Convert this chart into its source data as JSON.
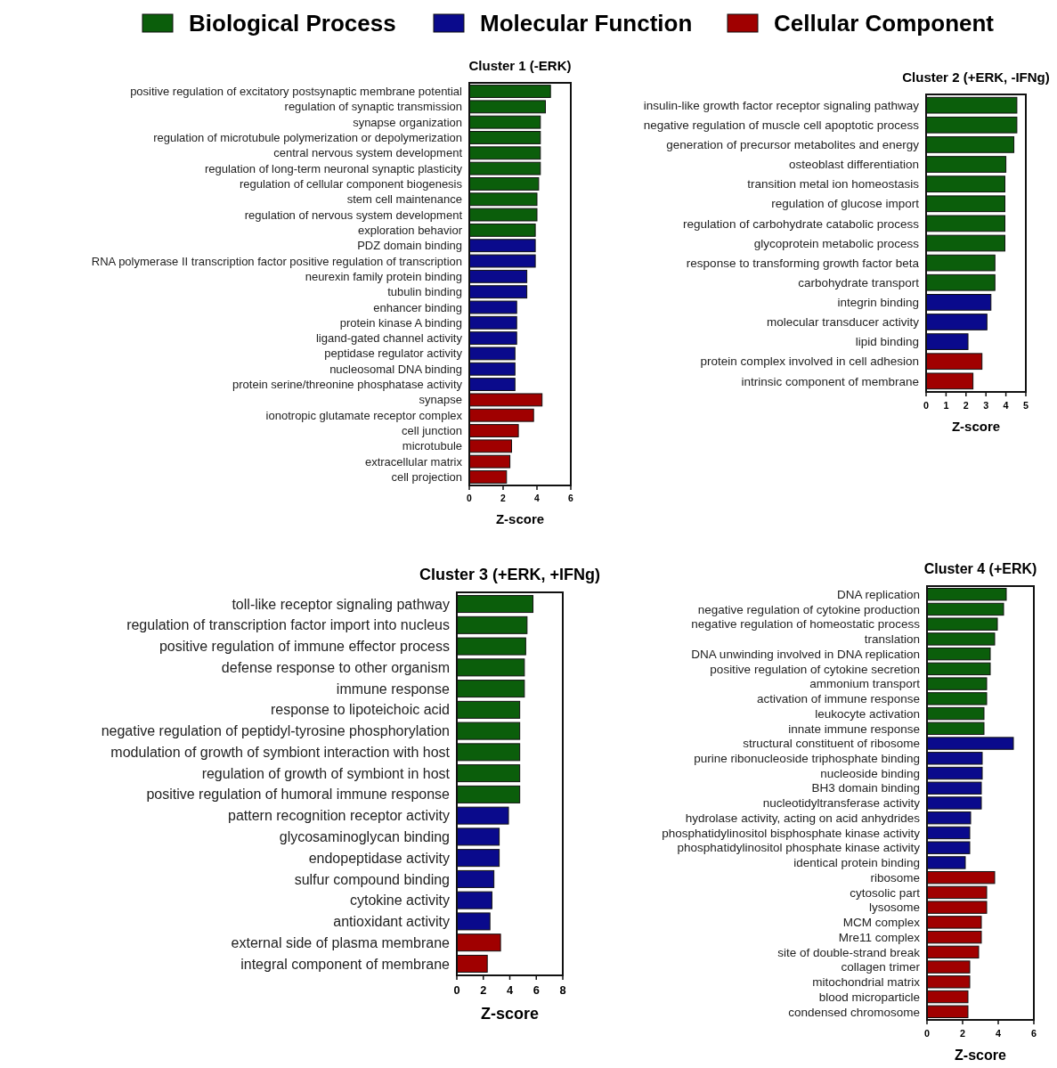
{
  "chart_data": [
    {
      "type": "bar",
      "orientation": "horizontal",
      "title": "Cluster 1 (-ERK)",
      "xlabel": "Z-score",
      "legend": "top",
      "categories": [
        "positive regulation of excitatory postsynaptic membrane potential",
        "regulation of synaptic transmission",
        "synapse organization",
        "regulation of microtubule polymerization or depolymerization",
        "central nervous system development",
        "regulation of long-term neuronal synaptic plasticity",
        "regulation of cellular component biogenesis",
        "stem cell maintenance",
        "regulation of nervous system development",
        "exploration behavior",
        "PDZ domain binding",
        "RNA polymerase II transcription factor positive regulation of transcription",
        "neurexin family protein binding",
        "tubulin binding",
        "enhancer binding",
        "protein kinase A binding",
        "ligand-gated channel activity",
        "peptidase regulator activity",
        "nucleosomal DNA binding",
        "protein serine/threonine phosphatase activity",
        "synapse",
        "ionotropic glutamate receptor complex",
        "cell junction",
        "microtubule",
        "extracellular matrix",
        "cell projection"
      ],
      "series": [
        {
          "name": "Biological Process",
          "color": "#0b5e0b",
          "values": [
            4.8,
            4.5,
            4.2,
            4.2,
            4.2,
            4.2,
            4.1,
            4.0,
            4.0,
            3.9,
            null,
            null,
            null,
            null,
            null,
            null,
            null,
            null,
            null,
            null,
            null,
            null,
            null,
            null,
            null,
            null
          ]
        },
        {
          "name": "Molecular Function",
          "color": "#0a0a8c",
          "values": [
            null,
            null,
            null,
            null,
            null,
            null,
            null,
            null,
            null,
            null,
            3.9,
            3.9,
            3.4,
            3.4,
            2.8,
            2.8,
            2.8,
            2.7,
            2.7,
            2.7,
            null,
            null,
            null,
            null,
            null,
            null
          ]
        },
        {
          "name": "Cellular Component",
          "color": "#a00000",
          "values": [
            null,
            null,
            null,
            null,
            null,
            null,
            null,
            null,
            null,
            null,
            null,
            null,
            null,
            null,
            null,
            null,
            null,
            null,
            null,
            null,
            4.3,
            3.8,
            2.9,
            2.5,
            2.4,
            2.2
          ]
        }
      ],
      "xlim": [
        0,
        6
      ],
      "xticks": [
        0,
        2,
        4,
        6
      ]
    },
    {
      "type": "bar",
      "orientation": "horizontal",
      "title": "Cluster 2 (+ERK, -IFNg)",
      "xlabel": "Z-score",
      "categories": [
        "insulin-like growth factor receptor signaling pathway",
        "negative regulation of muscle cell apoptotic process",
        "generation of precursor metabolites and energy",
        "osteoblast differentiation",
        "transition metal ion homeostasis",
        "regulation of glucose import",
        "regulation of carbohydrate catabolic process",
        "glycoprotein metabolic process",
        "response to transforming growth factor beta",
        "carbohydrate transport",
        "integrin binding",
        "molecular transducer activity",
        "lipid binding",
        "protein complex involved in cell adhesion",
        "intrinsic component of membrane"
      ],
      "series": [
        {
          "color": "#0b5e0b",
          "values": [
            4.55,
            4.55,
            4.4,
            4.0,
            3.95,
            3.95,
            3.95,
            3.95,
            3.45,
            3.45,
            null,
            null,
            null,
            null,
            null
          ]
        },
        {
          "color": "#0a0a8c",
          "values": [
            null,
            null,
            null,
            null,
            null,
            null,
            null,
            null,
            null,
            null,
            3.25,
            3.05,
            2.1,
            null,
            null
          ]
        },
        {
          "color": "#a00000",
          "values": [
            null,
            null,
            null,
            null,
            null,
            null,
            null,
            null,
            null,
            null,
            null,
            null,
            null,
            2.8,
            2.35
          ]
        }
      ],
      "xlim": [
        0,
        5
      ],
      "xticks": [
        0,
        1,
        2,
        3,
        4,
        5
      ]
    },
    {
      "type": "bar",
      "orientation": "horizontal",
      "title": "Cluster 3 (+ERK, +IFNg)",
      "xlabel": "Z-score",
      "categories": [
        "toll-like receptor signaling pathway",
        "regulation of transcription factor import into nucleus",
        "positive regulation of immune effector process",
        "defense response to other organism",
        "immune response",
        "response to lipoteichoic acid",
        "negative regulation of peptidyl-tyrosine phosphorylation",
        "modulation of growth of symbiont interaction with host",
        "regulation of growth of symbiont in host",
        "positive regulation of humoral immune response",
        "pattern recognition receptor activity",
        "glycosaminoglycan binding",
        "endopeptidase activity",
        "sulfur compound binding",
        "cytokine activity",
        "antioxidant activity",
        "external side of plasma membrane",
        "integral component of membrane"
      ],
      "series": [
        {
          "color": "#0b5e0b",
          "values": [
            5.75,
            5.3,
            5.2,
            5.1,
            5.1,
            4.75,
            4.75,
            4.75,
            4.75,
            4.75,
            null,
            null,
            null,
            null,
            null,
            null,
            null,
            null
          ]
        },
        {
          "color": "#0a0a8c",
          "values": [
            null,
            null,
            null,
            null,
            null,
            null,
            null,
            null,
            null,
            null,
            3.9,
            3.2,
            3.2,
            2.8,
            2.65,
            2.5,
            null,
            null
          ]
        },
        {
          "color": "#a00000",
          "values": [
            null,
            null,
            null,
            null,
            null,
            null,
            null,
            null,
            null,
            null,
            null,
            null,
            null,
            null,
            null,
            null,
            3.3,
            2.3
          ]
        }
      ],
      "xlim": [
        0,
        8
      ],
      "xticks": [
        0,
        2,
        4,
        6,
        8
      ]
    },
    {
      "type": "bar",
      "orientation": "horizontal",
      "title": "Cluster 4 (+ERK)",
      "xlabel": "Z-score",
      "categories": [
        "DNA replication",
        "negative regulation of cytokine production",
        "negative regulation of homeostatic process",
        "translation",
        "DNA unwinding involved in DNA replication",
        "positive regulation of cytokine secretion",
        "ammonium transport",
        "activation of immune response",
        "leukocyte activation",
        "innate immune response",
        "structural constituent of ribosome",
        "purine ribonucleoside triphosphate binding",
        "nucleoside binding",
        "BH3 domain binding",
        "nucleotidyltransferase activity",
        "hydrolase activity, acting on acid anhydrides",
        "phosphatidylinositol bisphosphate kinase activity",
        "phosphatidylinositol phosphate kinase activity",
        "identical protein binding",
        "ribosome",
        "cytosolic part",
        "lysosome",
        "MCM complex",
        "Mre11 complex",
        "site of double-strand break",
        "collagen trimer",
        "mitochondrial matrix",
        "blood microparticle",
        "condensed chromosome"
      ],
      "series": [
        {
          "color": "#0b5e0b",
          "values": [
            4.45,
            4.3,
            3.95,
            3.8,
            3.55,
            3.55,
            3.35,
            3.35,
            3.2,
            3.2,
            null,
            null,
            null,
            null,
            null,
            null,
            null,
            null,
            null,
            null,
            null,
            null,
            null,
            null,
            null,
            null,
            null,
            null,
            null
          ]
        },
        {
          "color": "#0a0a8c",
          "values": [
            null,
            null,
            null,
            null,
            null,
            null,
            null,
            null,
            null,
            null,
            4.85,
            3.1,
            3.1,
            3.05,
            3.05,
            2.45,
            2.4,
            2.4,
            2.15,
            null,
            null,
            null,
            null,
            null,
            null,
            null,
            null,
            null,
            null
          ]
        },
        {
          "color": "#a00000",
          "values": [
            null,
            null,
            null,
            null,
            null,
            null,
            null,
            null,
            null,
            null,
            null,
            null,
            null,
            null,
            null,
            null,
            null,
            null,
            null,
            3.8,
            3.35,
            3.35,
            3.05,
            3.05,
            2.9,
            2.4,
            2.4,
            2.3,
            2.3
          ]
        }
      ],
      "xlim": [
        0,
        6
      ],
      "xticks": [
        0,
        2,
        4,
        6
      ]
    }
  ]
}
